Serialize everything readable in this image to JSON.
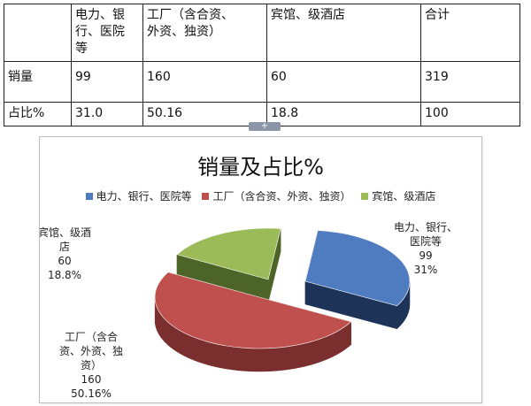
{
  "table": {
    "headers": [
      "",
      "电力、银行、医院等",
      "工厂（含合资、外资、独资）",
      "宾馆、级酒店",
      "合计"
    ],
    "header_lines": [
      [
        ""
      ],
      [
        "电力、银",
        "行、医院",
        "等"
      ],
      [
        "工厂（含合资、",
        "外资、独资）"
      ],
      [
        "宾馆、级酒店"
      ],
      [
        "合计"
      ]
    ],
    "rows": [
      [
        "销量",
        "99",
        "160",
        "60",
        "319"
      ],
      [
        "占比%",
        "31.0",
        "50.16",
        "18.8",
        "100"
      ]
    ]
  },
  "handle_glyph": "+",
  "chart_data": {
    "type": "pie",
    "title": "销量及占比%",
    "categories": [
      "电力、银行、医院等",
      "工厂（含合资、外资、独资）",
      "宾馆、级酒店"
    ],
    "values": [
      99,
      160,
      60
    ],
    "percents": [
      "31%",
      "50.16%",
      "18.8%"
    ],
    "colors": [
      "#4f7cc0",
      "#c0504d",
      "#9bbb59"
    ],
    "side_colors": [
      "#1d3358",
      "#7a2e2e",
      "#4d6428"
    ],
    "legend_position": "top",
    "data_labels": [
      {
        "lines": [
          "电力、银行、",
          "医院等",
          "99",
          "31%"
        ]
      },
      {
        "lines": [
          "工厂（含合",
          "资、外资、独",
          "资）",
          "160",
          "50.16%"
        ]
      },
      {
        "lines": [
          "宾馆、级酒",
          "店",
          "60",
          "18.8%"
        ]
      }
    ]
  }
}
